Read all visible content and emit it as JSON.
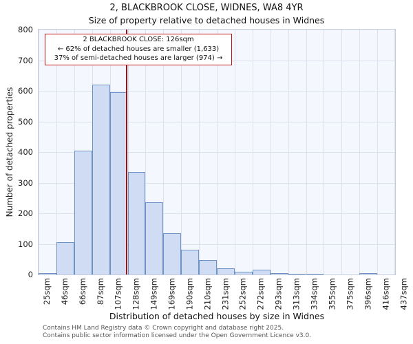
{
  "footer": {
    "line1": "Contains HM Land Registry data © Crown copyright and database right 2025.",
    "line2": "Contains public sector information licensed under the Open Government Licence v3.0."
  },
  "chart_data": {
    "type": "bar",
    "title": "2, BLACKBROOK CLOSE, WIDNES, WA8 4YR",
    "subtitle": "Size of property relative to detached houses in Widnes",
    "xlabel": "Distribution of detached houses by size in Widnes",
    "ylabel": "Number of detached properties",
    "tick_labels": [
      "25sqm",
      "46sqm",
      "66sqm",
      "87sqm",
      "107sqm",
      "128sqm",
      "149sqm",
      "169sqm",
      "190sqm",
      "210sqm",
      "231sqm",
      "252sqm",
      "272sqm",
      "293sqm",
      "313sqm",
      "334sqm",
      "355sqm",
      "375sqm",
      "396sqm",
      "416sqm",
      "437sqm"
    ],
    "bin_edges_sqm": [
      25,
      46,
      66,
      87,
      107,
      128,
      149,
      169,
      190,
      210,
      231,
      252,
      272,
      293,
      313,
      334,
      355,
      375,
      396,
      416,
      437
    ],
    "values": [
      4,
      105,
      405,
      620,
      595,
      335,
      237,
      135,
      82,
      48,
      20,
      10,
      15,
      4,
      2,
      1,
      0,
      0,
      5,
      0
    ],
    "yticks": [
      0,
      100,
      200,
      300,
      400,
      500,
      600,
      700,
      800
    ],
    "ylim": [
      0,
      800
    ],
    "grid": true,
    "legend": "none",
    "marker": {
      "value_sqm": 126,
      "color": "#a01010"
    },
    "bar_fill": "#cfdcf3",
    "bar_border": "#6d93c4",
    "plot_bg": "#f4f7fd",
    "annotation": {
      "line1": "2 BLACKBROOK CLOSE: 126sqm",
      "line2": "← 62% of detached houses are smaller (1,633)",
      "line3": "37% of semi-detached houses are larger (974) →"
    }
  }
}
